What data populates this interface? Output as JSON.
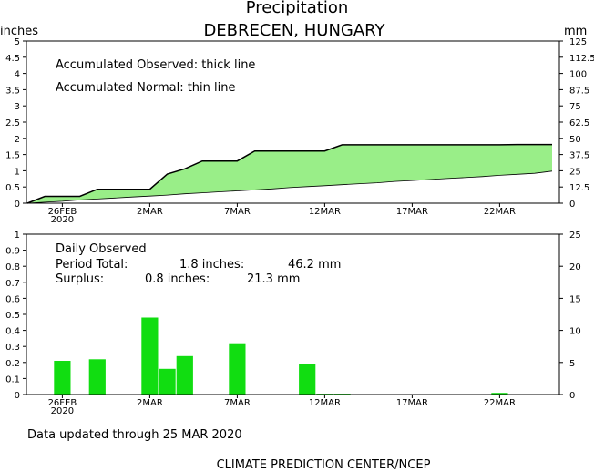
{
  "header": {
    "title": "Precipitation",
    "subtitle": "DEBRECEN, HUNGARY",
    "left_unit": "inches",
    "right_unit": "mm"
  },
  "colors": {
    "accum_fill": "#99ee88",
    "daily_bar": "#11dd11",
    "axis": "#000000"
  },
  "chart_data": [
    {
      "type": "area",
      "title": "Accumulated precipitation",
      "xlabel": "",
      "ylabel": "inches",
      "ylabel_right": "mm",
      "ylim": [
        0,
        5
      ],
      "ylim_right": [
        0,
        125
      ],
      "x_days": [
        "24FEB",
        "25FEB",
        "26FEB",
        "27FEB",
        "28FEB",
        "29FEB",
        "1MAR",
        "2MAR",
        "3MAR",
        "4MAR",
        "5MAR",
        "6MAR",
        "7MAR",
        "8MAR",
        "9MAR",
        "10MAR",
        "11MAR",
        "12MAR",
        "13MAR",
        "14MAR",
        "15MAR",
        "16MAR",
        "17MAR",
        "18MAR",
        "19MAR",
        "20MAR",
        "21MAR",
        "22MAR",
        "23MAR",
        "24MAR",
        "25MAR"
      ],
      "x_ticks": [
        {
          "day": "26FEB",
          "label": "26FEB",
          "sub": "2020"
        },
        {
          "day": "2MAR",
          "label": "2MAR",
          "sub": ""
        },
        {
          "day": "7MAR",
          "label": "7MAR",
          "sub": ""
        },
        {
          "day": "12MAR",
          "label": "12MAR",
          "sub": ""
        },
        {
          "day": "17MAR",
          "label": "17MAR",
          "sub": ""
        },
        {
          "day": "22MAR",
          "label": "22MAR",
          "sub": ""
        }
      ],
      "y_ticks_left": [
        "0",
        "0.5",
        "1",
        "1.5",
        "2",
        "2.5",
        "3",
        "3.5",
        "4",
        "4.5",
        "5"
      ],
      "y_ticks_right": [
        "0",
        "12.5",
        "25",
        "37.5",
        "50",
        "62.5",
        "75",
        "87.5",
        "100",
        "112.5",
        "125"
      ],
      "annotations": [
        "Accumulated Observed: thick line",
        "Accumulated Normal: thin line"
      ],
      "series": [
        {
          "name": "Accumulated Observed",
          "values": [
            0,
            0.21,
            0.21,
            0.21,
            0.43,
            0.43,
            0.43,
            0.43,
            0.9,
            1.06,
            1.3,
            1.3,
            1.3,
            1.61,
            1.61,
            1.61,
            1.61,
            1.61,
            1.8,
            1.8,
            1.8,
            1.8,
            1.8,
            1.8,
            1.8,
            1.8,
            1.8,
            1.8,
            1.81,
            1.81,
            1.81
          ]
        },
        {
          "name": "Accumulated Normal",
          "values": [
            0,
            0.03,
            0.06,
            0.1,
            0.13,
            0.16,
            0.19,
            0.22,
            0.25,
            0.29,
            0.32,
            0.35,
            0.38,
            0.41,
            0.44,
            0.48,
            0.51,
            0.54,
            0.57,
            0.6,
            0.63,
            0.67,
            0.7,
            0.73,
            0.76,
            0.79,
            0.82,
            0.86,
            0.89,
            0.92,
            0.99
          ]
        }
      ]
    },
    {
      "type": "bar",
      "title": "Daily Observed",
      "xlabel": "",
      "ylabel": "inches",
      "ylabel_right": "mm",
      "ylim": [
        0,
        1
      ],
      "ylim_right": [
        0,
        25
      ],
      "y_ticks_left": [
        "0",
        "0.1",
        "0.2",
        "0.3",
        "0.4",
        "0.5",
        "0.6",
        "0.7",
        "0.8",
        "0.9",
        "1"
      ],
      "y_ticks_right": [
        "0",
        "5",
        "10",
        "15",
        "20",
        "25"
      ],
      "x_ticks": [
        {
          "day": "26FEB",
          "label": "26FEB",
          "sub": "2020"
        },
        {
          "day": "2MAR",
          "label": "2MAR",
          "sub": ""
        },
        {
          "day": "7MAR",
          "label": "7MAR",
          "sub": ""
        },
        {
          "day": "12MAR",
          "label": "12MAR",
          "sub": ""
        },
        {
          "day": "17MAR",
          "label": "17MAR",
          "sub": ""
        },
        {
          "day": "22MAR",
          "label": "22MAR",
          "sub": ""
        }
      ],
      "bars": [
        {
          "day": "26FEB",
          "value": 0.21
        },
        {
          "day": "28FEB",
          "value": 0.22
        },
        {
          "day": "2MAR",
          "value": 0.48
        },
        {
          "day": "3MAR",
          "value": 0.16
        },
        {
          "day": "4MAR",
          "value": 0.24
        },
        {
          "day": "7MAR",
          "value": 0.32
        },
        {
          "day": "11MAR",
          "value": 0.19
        },
        {
          "day": "12MAR",
          "value": 0.005
        },
        {
          "day": "13MAR",
          "value": 0.005
        },
        {
          "day": "22MAR",
          "value": 0.01
        }
      ],
      "stats": {
        "heading": "Daily Observed",
        "row1_label": "Period Total:",
        "row1_inches": "1.8 inches:",
        "row1_mm": "46.2 mm",
        "row2_label": "Surplus:",
        "row2_inches": "0.8 inches:",
        "row2_mm": "21.3 mm"
      }
    }
  ],
  "footer": {
    "updated": "Data updated through 25 MAR 2020",
    "credit": "CLIMATE PREDICTION CENTER/NCEP"
  }
}
